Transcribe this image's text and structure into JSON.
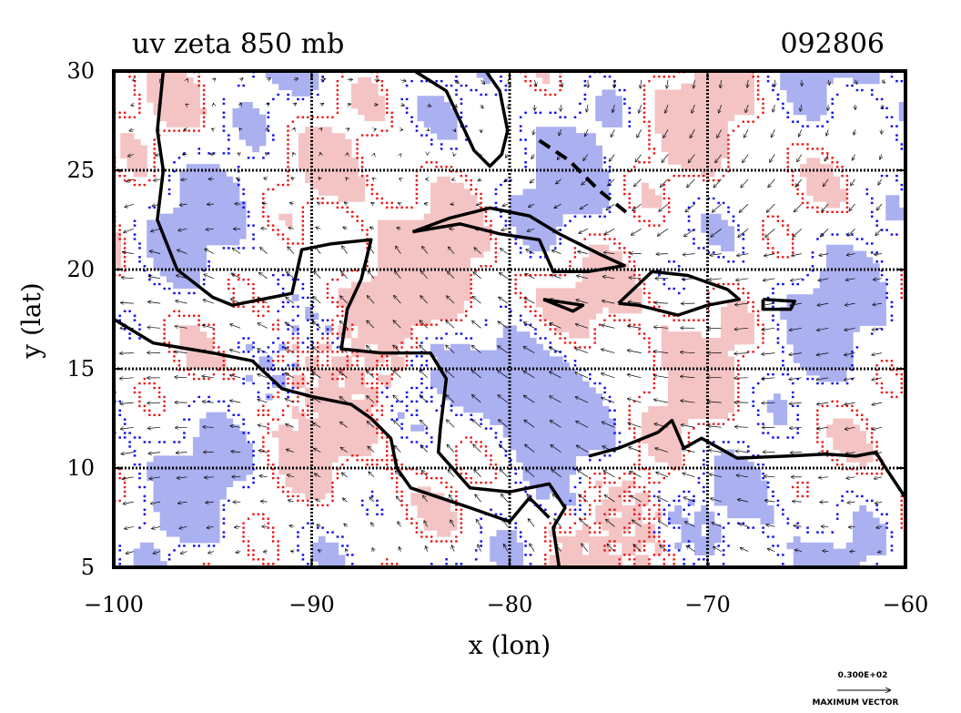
{
  "chart_data": {
    "type": "contour",
    "title": "uv zeta 850 mb",
    "timestamp": "092806",
    "xlabel": "x (lon)",
    "ylabel": "y (lat)",
    "xlim": [
      -100,
      -60
    ],
    "ylim": [
      5,
      30
    ],
    "xticks": [
      -100,
      -90,
      -80,
      -70,
      -60
    ],
    "yticks": [
      5,
      10,
      15,
      20,
      25,
      30
    ],
    "xtick_labels": [
      "−100",
      "−90",
      "−80",
      "−70",
      "−60"
    ],
    "ytick_labels": [
      "5",
      "10",
      "15",
      "20",
      "25",
      "30"
    ],
    "grid": true,
    "positive_color": "#f4c4c4",
    "positive_line": "#ee1111",
    "negative_color": "#aab0f0",
    "negative_line": "#1111ee",
    "coast_color": "#000000",
    "vector_legend": {
      "value_text": "0.300E+02",
      "caption": "MAXIMUM VECTOR"
    }
  }
}
